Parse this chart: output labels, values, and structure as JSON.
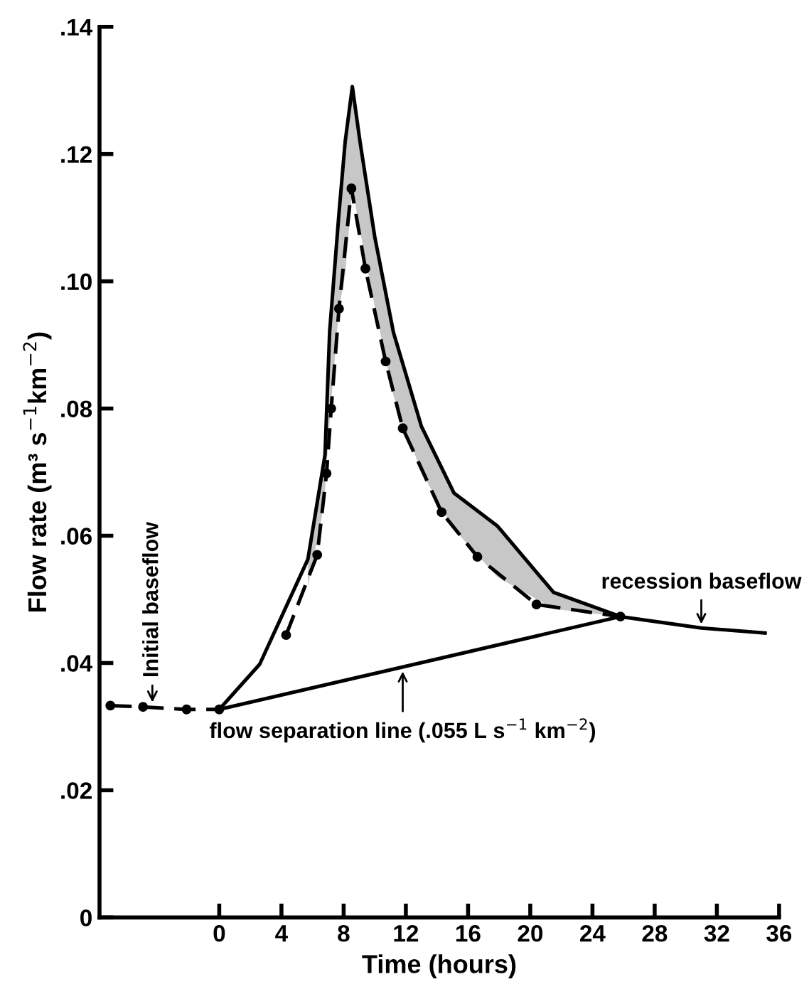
{
  "chart_data": {
    "type": "line",
    "xlabel": "Time (hours)",
    "ylabel": "Flow rate (m³ s$^{−1}$km$^{−2}$)",
    "xlim": [
      -7.7,
      36
    ],
    "ylim": [
      0,
      0.14
    ],
    "xticks": [
      0,
      4,
      8,
      12,
      16,
      20,
      24,
      28,
      32,
      36
    ],
    "yticks": [
      0,
      {
        "value": 0.02,
        "label": ".02"
      },
      {
        "value": 0.04,
        "label": ".04"
      },
      {
        "value": 0.06,
        "label": ".06"
      },
      {
        "value": 0.08,
        "label": ".08"
      },
      {
        "value": 0.1,
        "label": ".10"
      },
      {
        "value": 0.12,
        "label": ".12"
      },
      {
        "value": 0.14,
        "label": ".14"
      }
    ],
    "grid": false,
    "legend": false,
    "series": [
      {
        "color": "#000000",
        "line_style": "solid",
        "marker": "none",
        "x": [
          0,
          2.6,
          5.7,
          6.6,
          6.8,
          7.1,
          7.7,
          8.1,
          8.56,
          9.05,
          10.0,
          11.2,
          13.0,
          15.1,
          17.9,
          21.5,
          25.8,
          31.0,
          35.1
        ],
        "values": [
          0.0327,
          0.0398,
          0.0563,
          0.0697,
          0.0727,
          0.0921,
          0.1107,
          0.122,
          0.1306,
          0.122,
          0.107,
          0.092,
          0.0772,
          0.0667,
          0.0615,
          0.0511,
          0.0473,
          0.0455,
          0.0447
        ],
        "lower": [
          null,
          null,
          0.052,
          0.063,
          0.067,
          0.078,
          0.0957,
          0.101,
          0.1146,
          0.108,
          0.096,
          0.082,
          0.07,
          0.061,
          0.0535,
          0.0485,
          0.0473,
          null,
          null
        ],
        "upper": [
          null,
          null,
          0.0563,
          0.0697,
          0.0727,
          0.0921,
          0.1107,
          0.122,
          0.1306,
          0.122,
          0.107,
          0.092,
          0.0772,
          0.0667,
          0.0615,
          0.0511,
          0.0473,
          null,
          null
        ]
      },
      {
        "color": "#000000",
        "line_style": "dashed",
        "marker": "circle",
        "x": [
          4.3,
          6.3,
          6.9,
          7.2,
          7.7,
          8.5,
          9.4,
          10.7,
          11.8,
          14.3,
          16.6,
          20.4,
          25.8
        ],
        "values": [
          0.0444,
          0.057,
          0.0698,
          0.08,
          0.0957,
          0.1146,
          0.102,
          0.0874,
          0.0769,
          0.0637,
          0.0567,
          0.0492,
          0.0473
        ]
      },
      {
        "color": "#000000",
        "line_style": "solid",
        "marker": "none",
        "x": [
          0,
          25.8
        ],
        "values": [
          0.0327,
          0.0473
        ]
      },
      {
        "color": "#000000",
        "line_style": "dashed",
        "marker": "circle",
        "x": [
          -7.0,
          -4.9,
          -2.1,
          0
        ],
        "values": [
          0.0333,
          0.0331,
          0.0327,
          0.0327
        ]
      }
    ],
    "annotations": [
      {
        "text": "Initial baseflow",
        "x": -4.3,
        "y": 0.0332
      },
      {
        "text": "flow separation line (.055 L s$^{−1}$ km$^{−2}$)",
        "x": 11.8,
        "y": 0.0393
      },
      {
        "text": "recession baseflow",
        "x": 31.0,
        "y": 0.0455
      }
    ]
  }
}
